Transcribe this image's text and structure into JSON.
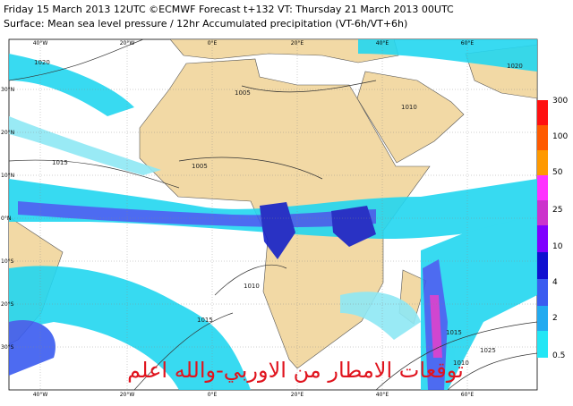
{
  "header": {
    "line1": "Friday 15 March 2013 12UTC ©ECMWF Forecast t+132 VT: Thursday 21 March 2013 00UTC",
    "line2": "Surface: Mean sea level pressure / 12hr Accumulated precipitation (VT-6h/VT+6h)"
  },
  "map": {
    "lon_labels": [
      "40°W",
      "20°W",
      "0°E",
      "20°E",
      "40°E",
      "60°E"
    ],
    "lat_labels": [
      "30°N",
      "20°N",
      "10°N",
      "0°N",
      "10°S",
      "20°S",
      "30°S"
    ],
    "contour_labels": [
      "1020",
      "1015",
      "1005",
      "1005",
      "1010",
      "1010",
      "1015",
      "1015",
      "1010",
      "1020",
      "1025"
    ],
    "watermark": "توقعات الامطار من الاوربي-والله اعلم"
  },
  "legend": {
    "labels": [
      "300",
      "100",
      "50",
      "25",
      "10",
      "4",
      "2",
      "0.5"
    ]
  }
}
